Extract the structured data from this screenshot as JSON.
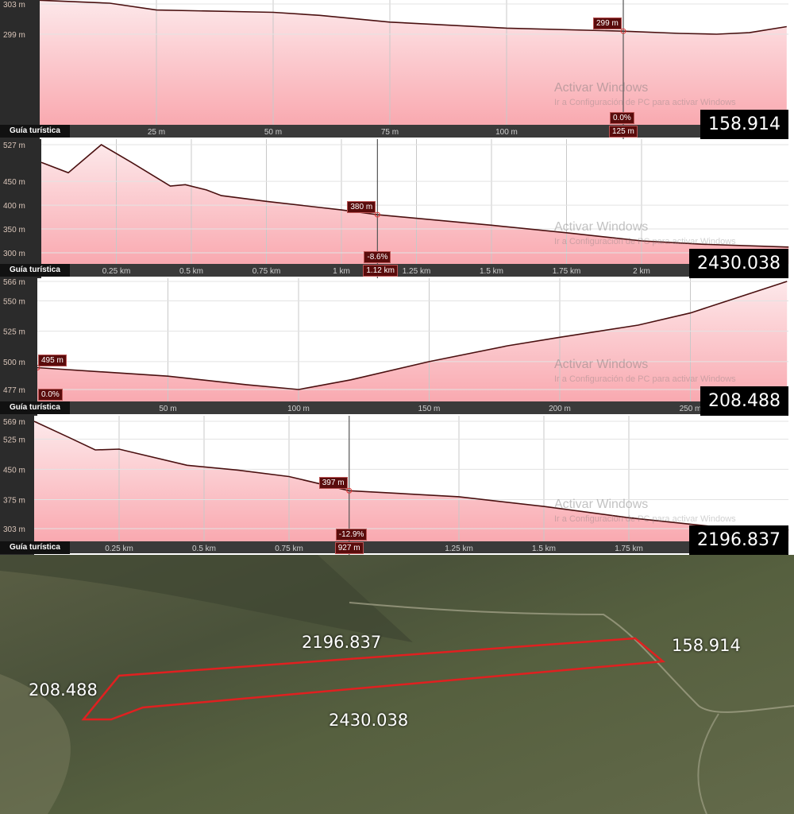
{
  "guide_label": "Guía turística",
  "watermark": {
    "line1": "Activar Windows",
    "line2": "Ir a Configuración de PC para activar Windows"
  },
  "colors": {
    "fill_top": "#fde8ea",
    "fill_bottom": "#f9a9b0",
    "line": "#4a1010",
    "marker": "#6b0d0d",
    "axis_strip": "#2b2b2b",
    "route": "#e02020"
  },
  "chart_data": [
    {
      "type": "area",
      "tag": "158.914",
      "x_unit": "m",
      "ylim": [
        298,
        303.5
      ],
      "xlim": [
        0,
        160
      ],
      "y_ticks": [
        {
          "v": 303,
          "label": "303 m"
        },
        {
          "v": 299,
          "label": "299 m"
        }
      ],
      "x_ticks": [
        {
          "v": 25,
          "label": "25 m"
        },
        {
          "v": 50,
          "label": "50 m"
        },
        {
          "v": 75,
          "label": "75 m"
        },
        {
          "v": 100,
          "label": "100 m"
        }
      ],
      "cursor": {
        "x": 125,
        "x_label": "125 m",
        "elev": 299.4,
        "elev_label": "299 m",
        "grade": "0.0%"
      },
      "x": [
        0,
        15,
        25,
        50,
        60,
        75,
        100,
        125,
        137,
        145,
        152,
        160
      ],
      "y": [
        303.5,
        303.1,
        302.2,
        301.9,
        301.5,
        300.6,
        299.8,
        299.4,
        299.1,
        299.0,
        299.2,
        300.0
      ]
    },
    {
      "type": "area",
      "tag": "2430.038",
      "x_unit": "km",
      "ylim": [
        290,
        530
      ],
      "xlim": [
        0,
        2.49
      ],
      "y_ticks": [
        {
          "v": 527,
          "label": "527 m"
        },
        {
          "v": 450,
          "label": "450 m"
        },
        {
          "v": 400,
          "label": "400 m"
        },
        {
          "v": 350,
          "label": "350 m"
        },
        {
          "v": 300,
          "label": "300 m"
        }
      ],
      "x_ticks": [
        {
          "v": 0.25,
          "label": "0.25 km"
        },
        {
          "v": 0.5,
          "label": "0.5 km"
        },
        {
          "v": 0.75,
          "label": "0.75 km"
        },
        {
          "v": 1,
          "label": "1 km"
        },
        {
          "v": 1.25,
          "label": "1.25 km"
        },
        {
          "v": 1.5,
          "label": "1.5 km"
        },
        {
          "v": 1.75,
          "label": "1.75 km"
        },
        {
          "v": 2,
          "label": "2 km"
        }
      ],
      "cursor": {
        "x": 1.12,
        "x_label": "1.12 km",
        "elev": 380,
        "elev_label": "380 m",
        "grade": "-8.6%"
      },
      "x": [
        0,
        0.09,
        0.2,
        0.3,
        0.43,
        0.48,
        0.55,
        0.6,
        0.75,
        1.0,
        1.12,
        1.5,
        1.75,
        2.0,
        2.2,
        2.49
      ],
      "y": [
        490,
        468,
        527,
        490,
        440,
        443,
        432,
        420,
        408,
        390,
        380,
        358,
        342,
        325,
        318,
        312
      ]
    },
    {
      "type": "area",
      "tag": "208.488",
      "x_unit": "m",
      "ylim": [
        470,
        566
      ],
      "xlim": [
        0,
        287
      ],
      "y_ticks": [
        {
          "v": 566,
          "label": "566 m"
        },
        {
          "v": 550,
          "label": "550 m"
        },
        {
          "v": 525,
          "label": "525 m"
        },
        {
          "v": 500,
          "label": "500 m"
        },
        {
          "v": 477,
          "label": "477 m"
        }
      ],
      "x_ticks": [
        {
          "v": 50,
          "label": "50 m"
        },
        {
          "v": 100,
          "label": "100 m"
        },
        {
          "v": 150,
          "label": "150 m"
        },
        {
          "v": 200,
          "label": "200 m"
        },
        {
          "v": 250,
          "label": "250 m"
        }
      ],
      "cursor": {
        "x": 0,
        "x_label": "",
        "elev": 495,
        "elev_label": "495 m",
        "grade": "0.0%"
      },
      "x": [
        0,
        50,
        80,
        100,
        120,
        150,
        180,
        200,
        230,
        250,
        287
      ],
      "y": [
        495,
        488,
        481,
        477,
        485,
        500,
        513,
        520,
        530,
        540,
        566
      ]
    },
    {
      "type": "area",
      "tag": "2196.837",
      "x_unit": "km",
      "ylim": [
        295,
        569
      ],
      "xlim": [
        0,
        2.22
      ],
      "y_ticks": [
        {
          "v": 569,
          "label": "569 m"
        },
        {
          "v": 525,
          "label": "525 m"
        },
        {
          "v": 450,
          "label": "450 m"
        },
        {
          "v": 375,
          "label": "375 m"
        },
        {
          "v": 303,
          "label": "303 m"
        }
      ],
      "x_ticks": [
        {
          "v": 0.25,
          "label": "0.25 km"
        },
        {
          "v": 0.5,
          "label": "0.5 km"
        },
        {
          "v": 0.75,
          "label": "0.75 km"
        },
        {
          "v": 1.25,
          "label": "1.25 km"
        },
        {
          "v": 1.5,
          "label": "1.5 km"
        },
        {
          "v": 1.75,
          "label": "1.75 km"
        }
      ],
      "cursor": {
        "x": 0.927,
        "x_label": "927 m",
        "elev": 397,
        "elev_label": "397 m",
        "grade": "-12.9%"
      },
      "x": [
        0,
        0.1,
        0.18,
        0.25,
        0.3,
        0.45,
        0.6,
        0.75,
        0.927,
        1.25,
        1.5,
        1.75,
        2.0,
        2.22
      ],
      "y": [
        569,
        530,
        498,
        500,
        490,
        460,
        448,
        432,
        397,
        382,
        358,
        330,
        308,
        300
      ]
    }
  ],
  "map": {
    "labels": [
      "2196.837",
      "158.914",
      "208.488",
      "2430.038"
    ]
  }
}
